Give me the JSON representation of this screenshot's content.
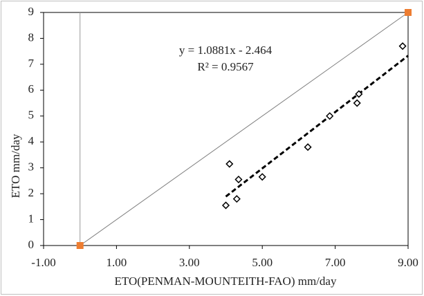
{
  "chart_data": {
    "type": "scatter",
    "x_label": "ETO(PENMAN-MOUNTEITH-FAO)  mm/day",
    "y_label": "ETO mm/day",
    "x": [
      4.0,
      4.1,
      4.3,
      4.35,
      5.0,
      6.25,
      6.85,
      7.6,
      7.65,
      8.85
    ],
    "values": [
      1.55,
      3.15,
      1.8,
      2.55,
      2.65,
      3.8,
      5.0,
      5.5,
      5.85,
      7.7
    ],
    "trendline": {
      "x": [
        4.0,
        9.0
      ],
      "y": [
        1.89,
        7.33
      ],
      "color": "#000000"
    },
    "reference_line": {
      "x": [
        0,
        9
      ],
      "y": [
        0,
        9
      ],
      "color": "#7f7f7f",
      "marker_color": "#ed7d31"
    },
    "annotations": [
      "y = 1.0881x - 2.464",
      "R² = 0.9567"
    ],
    "xlim": [
      -1,
      9
    ],
    "ylim": [
      0,
      9
    ],
    "xticks": [
      {
        "value": -1,
        "label": "-1.00"
      },
      {
        "value": 1,
        "label": "1.00"
      },
      {
        "value": 3,
        "label": "3.00"
      },
      {
        "value": 5,
        "label": "5.00"
      },
      {
        "value": 7,
        "label": "7.00"
      },
      {
        "value": 9,
        "label": "9.00"
      }
    ],
    "yticks": [
      0,
      1,
      2,
      3,
      4,
      5,
      6,
      7,
      8,
      9
    ],
    "grid": false
  }
}
